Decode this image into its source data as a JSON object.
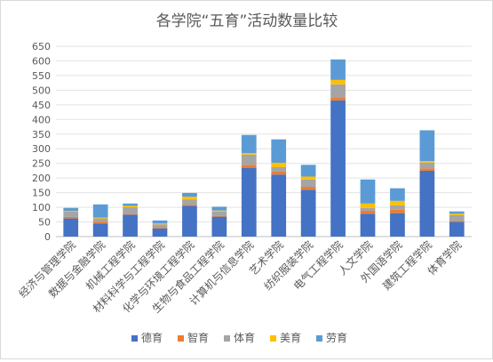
{
  "chart_data": {
    "type": "bar",
    "stacked": true,
    "title": "各学院“五育”活动数量比较",
    "xlabel": "",
    "ylabel": "",
    "ylim": [
      0,
      650
    ],
    "ytick_step": 50,
    "grid": true,
    "legend_position": "bottom",
    "categories": [
      "经济与管理学院",
      "数据与金融学院",
      "机械工程学院",
      "材料科学与工程学院",
      "化学与环境工程学院",
      "生物与食品工程学院",
      "计算机与信息学院",
      "艺术学院",
      "纺织服装学院",
      "电气工程学院",
      "人文学院",
      "外国语学院",
      "建筑工程学院",
      "体育学院"
    ],
    "series": [
      {
        "name": "德育",
        "color": "#4472C4",
        "values": [
          62,
          45,
          75,
          28,
          105,
          68,
          235,
          212,
          160,
          465,
          78,
          80,
          225,
          50
        ]
      },
      {
        "name": "智育",
        "color": "#ED7D31",
        "values": [
          5,
          5,
          3,
          4,
          3,
          3,
          10,
          10,
          10,
          10,
          10,
          12,
          8,
          3
        ]
      },
      {
        "name": "体育",
        "color": "#A5A5A5",
        "values": [
          18,
          12,
          22,
          10,
          18,
          15,
          35,
          15,
          25,
          45,
          10,
          15,
          20,
          20
        ]
      },
      {
        "name": "美育",
        "color": "#FFC000",
        "values": [
          3,
          3,
          5,
          3,
          10,
          3,
          5,
          15,
          10,
          15,
          15,
          15,
          5,
          5
        ]
      },
      {
        "name": "劳育",
        "color": "#5B9BD5",
        "values": [
          10,
          45,
          8,
          10,
          13,
          13,
          62,
          80,
          40,
          70,
          82,
          43,
          105,
          8
        ]
      }
    ]
  }
}
